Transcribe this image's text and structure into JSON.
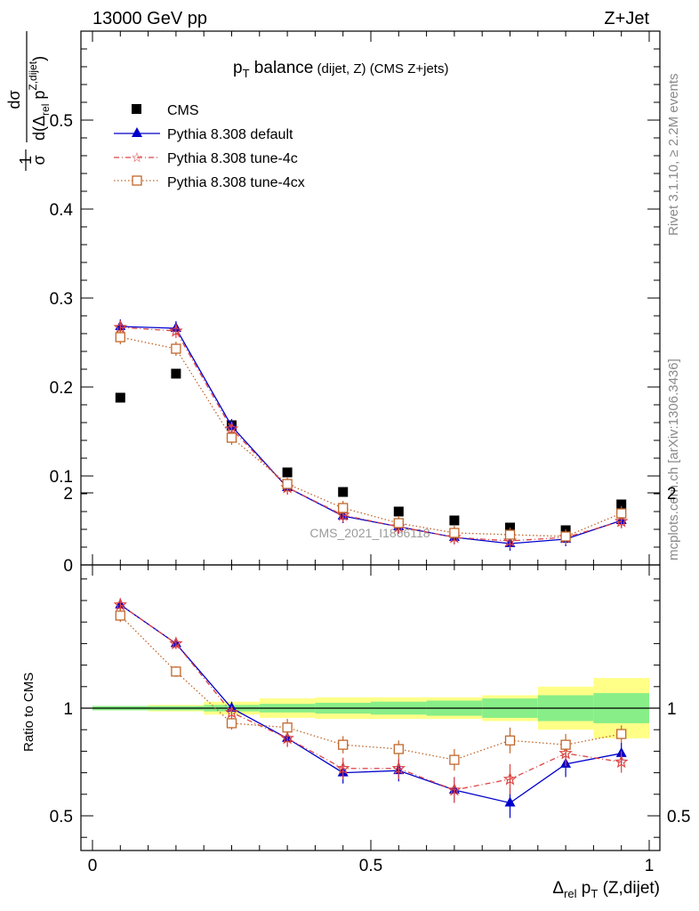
{
  "header": {
    "left": "13000 GeV pp",
    "right": "Z+Jet"
  },
  "side_labels": {
    "rivet": "Rivet 3.1.10, ≥ 2.2M events",
    "mcplots": "mcplots.cern.ch [arXiv:1306.3436]"
  },
  "chart_data": {
    "type": "scatter",
    "title_main": "p",
    "title_sub": "T",
    "title_tail": " balance",
    "title_paren": " (dijet, Z) (CMS Z+jets)",
    "watermark": "CMS_2021_I1866118",
    "x_axis": {
      "label_delta": "Δ",
      "label_rel": "rel",
      "label_p": " p",
      "label_T": "T",
      "label_tail": " (Z,dijet)",
      "range": [
        0,
        1
      ],
      "ticks": [
        0,
        0.5,
        1
      ],
      "tick_labels": [
        "0",
        "0.5",
        "1"
      ]
    },
    "main_panel": {
      "y_range": [
        0,
        0.6
      ],
      "y_ticks": [
        0,
        0.1,
        0.2,
        0.3,
        0.4,
        0.5
      ],
      "y_tick_labels": [
        "0",
        "0.1",
        "0.2",
        "0.3",
        "0.4",
        "0.5"
      ],
      "y_label": {
        "one": "1",
        "sigma": "σ",
        "dsigma": "dσ",
        "d": "d(Δ",
        "rel": "rel",
        "p": " p",
        "T": "T",
        "sup": "Z,dijet",
        "close": ")"
      }
    },
    "ratio_panel": {
      "y_range": [
        0.35,
        2.3
      ],
      "y_ticks": [
        0.5,
        1,
        2
      ],
      "y_tick_labels": [
        "0.5",
        "1",
        "2"
      ],
      "y_label": "Ratio to CMS"
    },
    "x": [
      0.05,
      0.15,
      0.25,
      0.35,
      0.45,
      0.55,
      0.65,
      0.75,
      0.85,
      0.95
    ],
    "bin_edges": [
      0,
      0.1,
      0.2,
      0.3,
      0.4,
      0.5,
      0.6,
      0.7,
      0.8,
      0.9,
      1.0
    ],
    "data_band": {
      "inner": [
        0.01,
        0.01,
        0.015,
        0.02,
        0.025,
        0.03,
        0.035,
        0.045,
        0.06,
        0.07
      ],
      "outer": [
        0.01,
        0.015,
        0.03,
        0.045,
        0.05,
        0.05,
        0.05,
        0.06,
        0.1,
        0.14
      ]
    },
    "series": [
      {
        "name": "CMS",
        "color": "#000000",
        "marker": "square",
        "values": [
          0.188,
          0.215,
          0.157,
          0.104,
          0.082,
          0.06,
          0.05,
          0.042,
          0.039,
          0.068
        ],
        "ratio": [
          1,
          1,
          1,
          1,
          1,
          1,
          1,
          1,
          1,
          1
        ]
      },
      {
        "name": "Pythia 8.308 default",
        "color": "#0000cc",
        "marker": "triangle",
        "line": "solid",
        "values": [
          0.268,
          0.266,
          0.156,
          0.087,
          0.055,
          0.043,
          0.031,
          0.024,
          0.029,
          0.05
        ],
        "ratio": [
          1.48,
          1.3,
          1.0,
          0.86,
          0.7,
          0.71,
          0.62,
          0.56,
          0.74,
          0.79
        ],
        "err": [
          0.03,
          0.025,
          0.03,
          0.04,
          0.05,
          0.05,
          0.06,
          0.07,
          0.06,
          0.05
        ]
      },
      {
        "name": "Pythia 8.308 tune-4c",
        "color": "#dd4444",
        "marker": "star",
        "line": "dashdot",
        "values": [
          0.267,
          0.263,
          0.153,
          0.087,
          0.056,
          0.043,
          0.031,
          0.027,
          0.031,
          0.049
        ],
        "ratio": [
          1.48,
          1.3,
          0.98,
          0.86,
          0.72,
          0.72,
          0.62,
          0.67,
          0.79,
          0.75
        ],
        "err": [
          0.03,
          0.025,
          0.03,
          0.04,
          0.05,
          0.05,
          0.06,
          0.07,
          0.06,
          0.05
        ]
      },
      {
        "name": "Pythia 8.308 tune-4cx",
        "color": "#c0662a",
        "marker": "open-square",
        "line": "dotted",
        "values": [
          0.256,
          0.243,
          0.143,
          0.091,
          0.064,
          0.047,
          0.036,
          0.034,
          0.032,
          0.058
        ],
        "ratio": [
          1.43,
          1.17,
          0.93,
          0.91,
          0.83,
          0.81,
          0.76,
          0.85,
          0.83,
          0.88
        ],
        "err": [
          0.03,
          0.025,
          0.03,
          0.04,
          0.04,
          0.04,
          0.05,
          0.06,
          0.05,
          0.04
        ]
      }
    ]
  }
}
